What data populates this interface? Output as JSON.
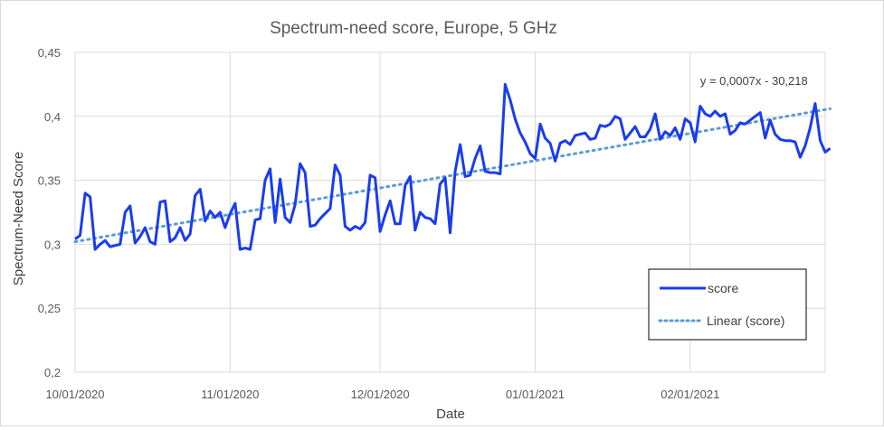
{
  "chart_data": {
    "type": "line",
    "title": "Spectrum-need score, Europe, 5 GHz",
    "xlabel": "Date",
    "ylabel": "Spectrum-Need Score",
    "ylim": [
      0.2,
      0.45
    ],
    "yticks": [
      "0,2",
      "0,25",
      "0,3",
      "0,35",
      "0,4",
      "0,45"
    ],
    "xlim": [
      "2020-10-01",
      "2021-02-28"
    ],
    "xticks": [
      "10/01/2020",
      "11/01/2020",
      "12/01/2020",
      "01/01/2021",
      "02/01/2021"
    ],
    "grid": true,
    "legend_position": "bottom-right",
    "series": [
      {
        "name": "score",
        "color": "#1a3cf0",
        "style": "solid",
        "points": [
          [
            "2020-10-01",
            0.304
          ],
          [
            "2020-10-02",
            0.307
          ],
          [
            "2020-10-03",
            0.34
          ],
          [
            "2020-10-04",
            0.337
          ],
          [
            "2020-10-05",
            0.296
          ],
          [
            "2020-10-06",
            0.3
          ],
          [
            "2020-10-07",
            0.303
          ],
          [
            "2020-10-08",
            0.298
          ],
          [
            "2020-10-09",
            0.299
          ],
          [
            "2020-10-10",
            0.3
          ],
          [
            "2020-10-11",
            0.325
          ],
          [
            "2020-10-12",
            0.33
          ],
          [
            "2020-10-13",
            0.301
          ],
          [
            "2020-10-14",
            0.306
          ],
          [
            "2020-10-15",
            0.313
          ],
          [
            "2020-10-16",
            0.302
          ],
          [
            "2020-10-17",
            0.3
          ],
          [
            "2020-10-18",
            0.333
          ],
          [
            "2020-10-19",
            0.334
          ],
          [
            "2020-10-20",
            0.302
          ],
          [
            "2020-10-21",
            0.305
          ],
          [
            "2020-10-22",
            0.313
          ],
          [
            "2020-10-23",
            0.303
          ],
          [
            "2020-10-24",
            0.308
          ],
          [
            "2020-10-25",
            0.338
          ],
          [
            "2020-10-26",
            0.343
          ],
          [
            "2020-10-27",
            0.318
          ],
          [
            "2020-10-28",
            0.326
          ],
          [
            "2020-10-29",
            0.321
          ],
          [
            "2020-10-30",
            0.325
          ],
          [
            "2020-10-31",
            0.313
          ],
          [
            "2020-11-01",
            0.324
          ],
          [
            "2020-11-02",
            0.332
          ],
          [
            "2020-11-03",
            0.296
          ],
          [
            "2020-11-04",
            0.297
          ],
          [
            "2020-11-05",
            0.296
          ],
          [
            "2020-11-06",
            0.319
          ],
          [
            "2020-11-07",
            0.32
          ],
          [
            "2020-11-08",
            0.35
          ],
          [
            "2020-11-09",
            0.359
          ],
          [
            "2020-11-10",
            0.317
          ],
          [
            "2020-11-11",
            0.351
          ],
          [
            "2020-11-12",
            0.321
          ],
          [
            "2020-11-13",
            0.317
          ],
          [
            "2020-11-14",
            0.331
          ],
          [
            "2020-11-15",
            0.363
          ],
          [
            "2020-11-16",
            0.356
          ],
          [
            "2020-11-17",
            0.314
          ],
          [
            "2020-11-18",
            0.315
          ],
          [
            "2020-11-19",
            0.32
          ],
          [
            "2020-11-20",
            0.324
          ],
          [
            "2020-11-21",
            0.328
          ],
          [
            "2020-11-22",
            0.362
          ],
          [
            "2020-11-23",
            0.354
          ],
          [
            "2020-11-24",
            0.314
          ],
          [
            "2020-11-25",
            0.311
          ],
          [
            "2020-11-26",
            0.314
          ],
          [
            "2020-11-27",
            0.312
          ],
          [
            "2020-11-28",
            0.317
          ],
          [
            "2020-11-29",
            0.354
          ],
          [
            "2020-11-30",
            0.352
          ],
          [
            "2020-12-01",
            0.31
          ],
          [
            "2020-12-02",
            0.323
          ],
          [
            "2020-12-03",
            0.334
          ],
          [
            "2020-12-04",
            0.316
          ],
          [
            "2020-12-05",
            0.316
          ],
          [
            "2020-12-06",
            0.346
          ],
          [
            "2020-12-07",
            0.353
          ],
          [
            "2020-12-08",
            0.311
          ],
          [
            "2020-12-09",
            0.325
          ],
          [
            "2020-12-10",
            0.321
          ],
          [
            "2020-12-11",
            0.32
          ],
          [
            "2020-12-12",
            0.316
          ],
          [
            "2020-12-13",
            0.347
          ],
          [
            "2020-12-14",
            0.352
          ],
          [
            "2020-12-15",
            0.309
          ],
          [
            "2020-12-16",
            0.357
          ],
          [
            "2020-12-17",
            0.378
          ],
          [
            "2020-12-18",
            0.353
          ],
          [
            "2020-12-19",
            0.354
          ],
          [
            "2020-12-20",
            0.367
          ],
          [
            "2020-12-21",
            0.377
          ],
          [
            "2020-12-22",
            0.357
          ],
          [
            "2020-12-23",
            0.356
          ],
          [
            "2020-12-24",
            0.356
          ],
          [
            "2020-12-25",
            0.355
          ],
          [
            "2020-12-26",
            0.425
          ],
          [
            "2020-12-27",
            0.413
          ],
          [
            "2020-12-28",
            0.398
          ],
          [
            "2020-12-29",
            0.387
          ],
          [
            "2020-12-30",
            0.38
          ],
          [
            "2020-12-31",
            0.371
          ],
          [
            "2021-01-01",
            0.367
          ],
          [
            "2021-01-02",
            0.394
          ],
          [
            "2021-01-03",
            0.383
          ],
          [
            "2021-01-04",
            0.379
          ],
          [
            "2021-01-05",
            0.365
          ],
          [
            "2021-01-06",
            0.379
          ],
          [
            "2021-01-07",
            0.381
          ],
          [
            "2021-01-08",
            0.378
          ],
          [
            "2021-01-09",
            0.385
          ],
          [
            "2021-01-10",
            0.386
          ],
          [
            "2021-01-11",
            0.387
          ],
          [
            "2021-01-12",
            0.382
          ],
          [
            "2021-01-13",
            0.383
          ],
          [
            "2021-01-14",
            0.393
          ],
          [
            "2021-01-15",
            0.392
          ],
          [
            "2021-01-16",
            0.394
          ],
          [
            "2021-01-17",
            0.4
          ],
          [
            "2021-01-18",
            0.398
          ],
          [
            "2021-01-19",
            0.382
          ],
          [
            "2021-01-20",
            0.387
          ],
          [
            "2021-01-21",
            0.392
          ],
          [
            "2021-01-22",
            0.384
          ],
          [
            "2021-01-23",
            0.384
          ],
          [
            "2021-01-24",
            0.39
          ],
          [
            "2021-01-25",
            0.402
          ],
          [
            "2021-01-26",
            0.382
          ],
          [
            "2021-01-27",
            0.388
          ],
          [
            "2021-01-28",
            0.385
          ],
          [
            "2021-01-29",
            0.391
          ],
          [
            "2021-01-30",
            0.382
          ],
          [
            "2021-01-31",
            0.398
          ],
          [
            "2021-02-01",
            0.395
          ],
          [
            "2021-02-02",
            0.38
          ],
          [
            "2021-02-03",
            0.408
          ],
          [
            "2021-02-04",
            0.402
          ],
          [
            "2021-02-05",
            0.4
          ],
          [
            "2021-02-06",
            0.404
          ],
          [
            "2021-02-07",
            0.4
          ],
          [
            "2021-02-08",
            0.402
          ],
          [
            "2021-02-09",
            0.386
          ],
          [
            "2021-02-10",
            0.389
          ],
          [
            "2021-02-11",
            0.395
          ],
          [
            "2021-02-12",
            0.394
          ],
          [
            "2021-02-13",
            0.397
          ],
          [
            "2021-02-14",
            0.4
          ],
          [
            "2021-02-15",
            0.403
          ],
          [
            "2021-02-16",
            0.383
          ],
          [
            "2021-02-17",
            0.397
          ],
          [
            "2021-02-18",
            0.386
          ],
          [
            "2021-02-19",
            0.382
          ],
          [
            "2021-02-20",
            0.381
          ],
          [
            "2021-02-21",
            0.381
          ],
          [
            "2021-02-22",
            0.38
          ],
          [
            "2021-02-23",
            0.368
          ],
          [
            "2021-02-24",
            0.377
          ],
          [
            "2021-02-25",
            0.391
          ],
          [
            "2021-02-26",
            0.41
          ],
          [
            "2021-02-27",
            0.381
          ],
          [
            "2021-02-28",
            0.372
          ],
          [
            "2021-03-01",
            0.375
          ]
        ]
      },
      {
        "name": "Linear (score)",
        "color": "#5b9bd5",
        "style": "dotted",
        "points": [
          [
            "2020-10-01",
            0.302
          ],
          [
            "2021-03-01",
            0.406
          ]
        ]
      }
    ],
    "annotations": [
      {
        "text": "y = 0,0007x - 30,218",
        "x": "2021-02-03",
        "y": 0.4245
      }
    ]
  }
}
